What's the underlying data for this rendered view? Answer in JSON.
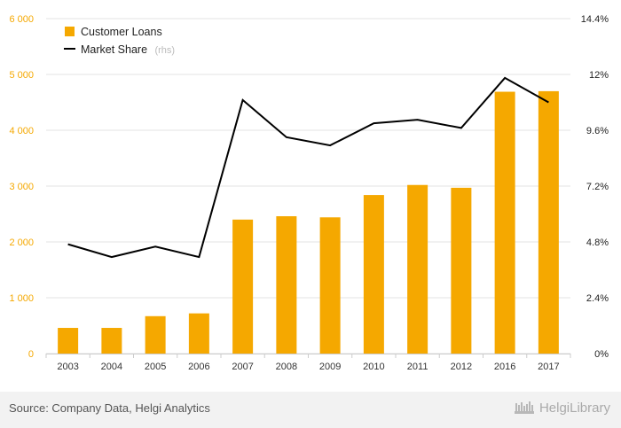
{
  "chart_data": {
    "type": "bar+line",
    "categories": [
      "2003",
      "2004",
      "2005",
      "2006",
      "2007",
      "2008",
      "2009",
      "2010",
      "2011",
      "2012",
      "2016",
      "2017"
    ],
    "series": [
      {
        "name": "Customer Loans",
        "type": "bar",
        "axis": "left",
        "values": [
          460,
          460,
          670,
          720,
          2400,
          2460,
          2440,
          2840,
          3020,
          2970,
          4690,
          4700
        ]
      },
      {
        "name": "Market Share",
        "type": "line",
        "axis": "right",
        "values": [
          4.7,
          4.15,
          4.6,
          4.15,
          10.9,
          9.3,
          8.95,
          9.9,
          10.05,
          9.7,
          11.85,
          10.8
        ]
      }
    ],
    "legend_suffix": "(rhs)",
    "y_left": {
      "ylim": [
        0,
        6000
      ],
      "ticks": [
        0,
        1000,
        2000,
        3000,
        4000,
        5000,
        6000
      ],
      "tick_labels": [
        "0",
        "1 000",
        "2 000",
        "3 000",
        "4 000",
        "5 000",
        "6 000"
      ]
    },
    "y_right": {
      "ylim": [
        0,
        14.4
      ],
      "ticks": [
        0,
        2.4,
        4.8,
        7.2,
        9.6,
        12,
        14.4
      ],
      "tick_labels": [
        "0%",
        "2.4%",
        "4.8%",
        "7.2%",
        "9.6%",
        "12%",
        "14.4%"
      ]
    },
    "grid": true,
    "legend_position": "top-left",
    "colors": {
      "bar": "#f5a800",
      "line": "#000000",
      "grid": "#e3e3e3"
    }
  },
  "footer": {
    "source": "Source: Company Data, Helgi Analytics",
    "brand": "HelgiLibrary"
  }
}
